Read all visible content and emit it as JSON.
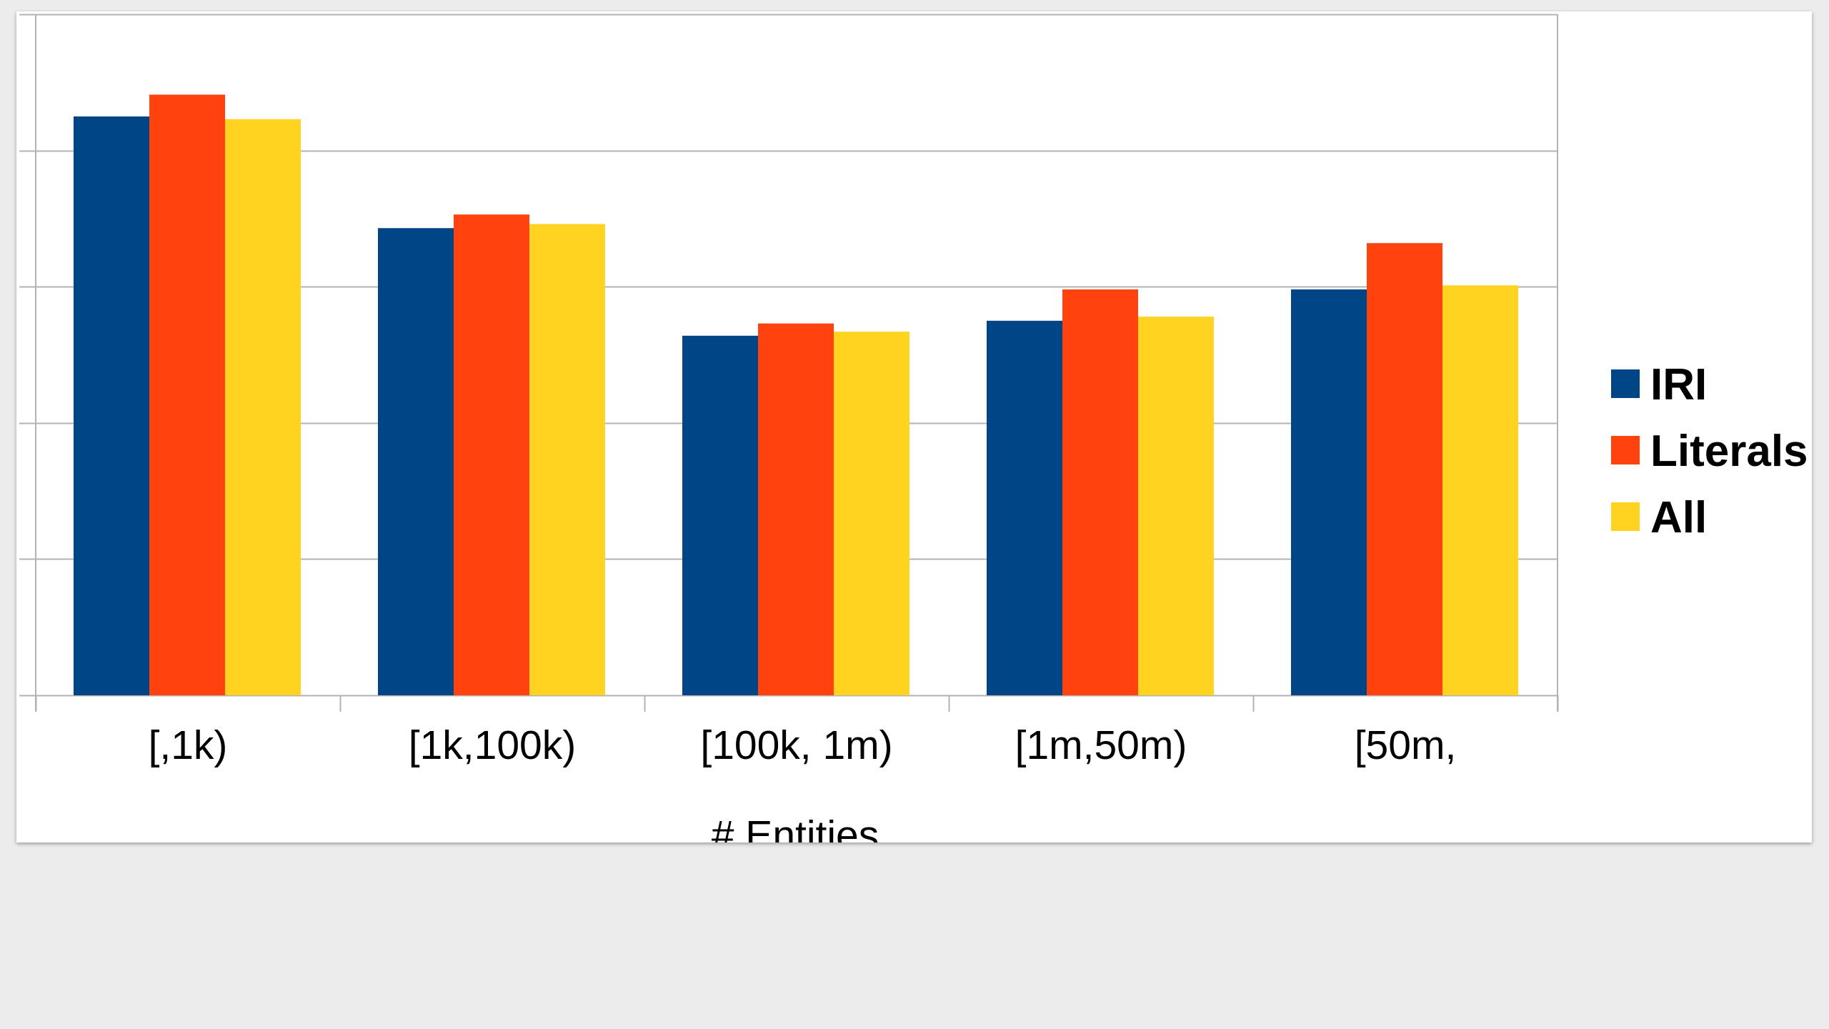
{
  "chart_data": {
    "type": "bar",
    "title": "",
    "xlabel": "# Entities",
    "ylabel": "",
    "categories": [
      "[,1k)",
      "[1k,100k)",
      "[100k, 1m)",
      "[1m,50m)",
      "[50m,"
    ],
    "series": [
      {
        "name": "IRI",
        "color": "#004586",
        "values": [
          4.25,
          3.43,
          2.64,
          2.75,
          2.98
        ]
      },
      {
        "name": "Literals",
        "color": "#ff420e",
        "values": [
          4.41,
          3.53,
          2.73,
          2.98,
          3.32
        ]
      },
      {
        "name": "All",
        "color": "#ffd320",
        "values": [
          4.23,
          3.46,
          2.67,
          2.78,
          3.01
        ]
      }
    ],
    "ylim": [
      0,
      5
    ],
    "y_gridlines": [
      0,
      1,
      2,
      3,
      4,
      5
    ],
    "y_tick_labels_visible": false,
    "grid": true,
    "legend": "right",
    "colors": {
      "grid": "#b3b3b3",
      "plot_border": "#b3b3b3",
      "background": "#ffffff",
      "page": "#ececec"
    }
  }
}
